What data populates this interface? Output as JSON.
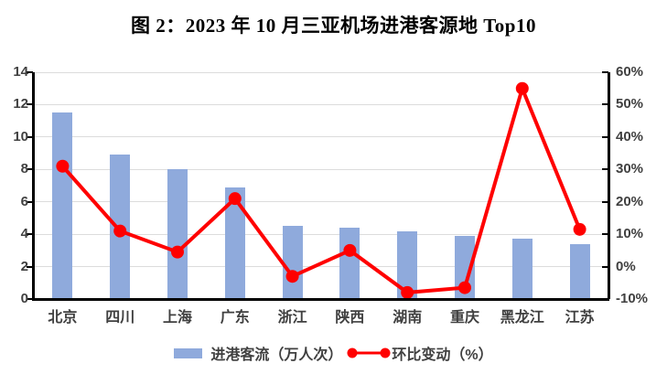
{
  "chart_data": {
    "type": "combo-bar-line",
    "title": "图 2：2023 年 10 月三亚机场进港客源地 Top10",
    "categories": [
      "北京",
      "四川",
      "上海",
      "广东",
      "浙江",
      "陕西",
      "湖南",
      "重庆",
      "黑龙江",
      "江苏"
    ],
    "series": [
      {
        "name": "进港客流（万人次）",
        "type": "bar",
        "axis": "left",
        "values": [
          11.5,
          8.9,
          8.0,
          6.9,
          4.5,
          4.4,
          4.2,
          3.9,
          3.7,
          3.4
        ]
      },
      {
        "name": "环比变动（%）",
        "type": "line",
        "axis": "right",
        "values": [
          31,
          11,
          4.5,
          21,
          -3,
          5,
          -8,
          -6.5,
          55,
          11.5
        ]
      }
    ],
    "left_axis": {
      "min": 0,
      "max": 14,
      "ticks": [
        "0",
        "2",
        "4",
        "6",
        "8",
        "10",
        "12",
        "14"
      ]
    },
    "right_axis": {
      "min": -10,
      "max": 60,
      "ticks": [
        "-10%",
        "0%",
        "10%",
        "20%",
        "30%",
        "40%",
        "50%",
        "60%"
      ]
    },
    "grid": true,
    "legend_position": "bottom",
    "colors": {
      "bar": "#8FAADC",
      "line": "#FF0000",
      "grid": "#DCDCDC",
      "axis": "#000000",
      "tick_label": "#404040"
    }
  }
}
